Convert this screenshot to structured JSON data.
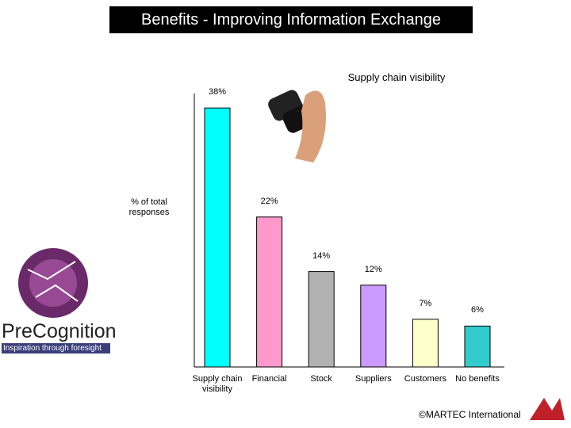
{
  "chart_data": {
    "type": "bar",
    "title": "Benefits - Improving Information Exchange",
    "subtitle": "Supply chain visibility",
    "y_label": "% of total responses",
    "categories": [
      "Supply chain visibility",
      "Financial",
      "Stock",
      "Suppliers",
      "Customers",
      "No benefits"
    ],
    "values": [
      38,
      22,
      14,
      12,
      7,
      6
    ],
    "value_labels": [
      "38%",
      "22%",
      "14%",
      "12%",
      "7%",
      "6%"
    ],
    "colors": [
      "#00ffff",
      "#ff99cc",
      "#b2b2b2",
      "#cc99ff",
      "#ffffcc",
      "#33cccc"
    ],
    "ylim": [
      0,
      40
    ]
  },
  "logos": {
    "brand": "PreCognition",
    "tagline": "Inspiration through foresight",
    "copyright": "©MARTEC International"
  }
}
